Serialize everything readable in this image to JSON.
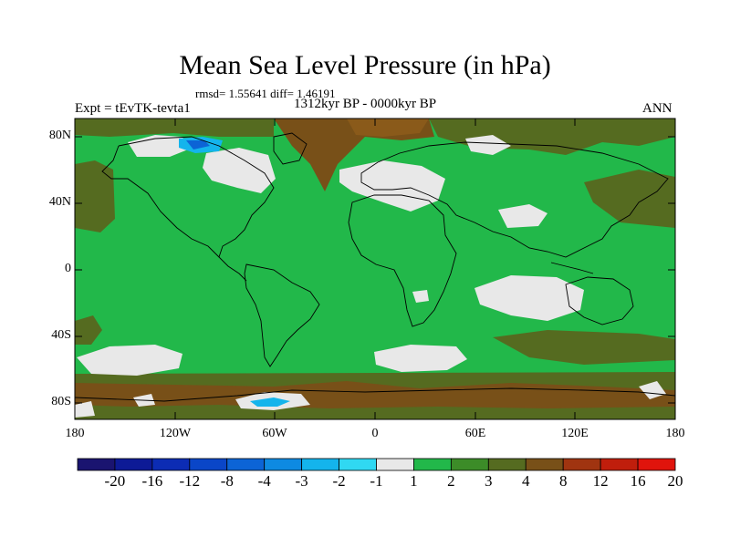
{
  "title": "Mean Sea Level Pressure (in hPa)",
  "stats": "rmsd= 1.55641 diff= 1.46191",
  "period": "1312kyr BP - 0000kyr BP",
  "experiment": "Expt = tEvTK-tevta1",
  "season": "ANN",
  "axes": {
    "y_ticks": [
      "80N",
      "40N",
      "0",
      "40S",
      "80S"
    ],
    "x_ticks": [
      "180",
      "120W",
      "60W",
      "0",
      "60E",
      "120E",
      "180"
    ]
  },
  "colorbar": {
    "labels": [
      "-20",
      "-16",
      "-12",
      "-8",
      "-4",
      "-3",
      "-2",
      "-1",
      "1",
      "2",
      "3",
      "4",
      "8",
      "12",
      "16",
      "20"
    ],
    "colors": [
      "#1a1470",
      "#0d1a96",
      "#0c2cb4",
      "#0a46c8",
      "#0c64d6",
      "#0e8ae2",
      "#14b4ec",
      "#30d8f2",
      "#e8e8e8",
      "#22b84a",
      "#3c8c28",
      "#556b20",
      "#785018",
      "#a03410",
      "#c01e0c",
      "#e0140c"
    ]
  },
  "colors": {
    "ocean_land_default": "#22b84a",
    "near_zero": "#e8e8e8",
    "moderate_positive": "#556b20",
    "high_positive": "#785018",
    "negative": "#0e8ae2"
  }
}
